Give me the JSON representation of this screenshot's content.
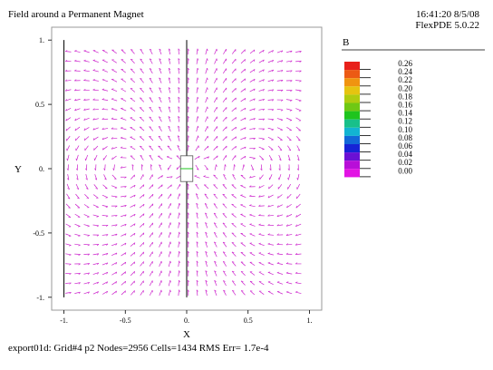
{
  "header": {
    "title": "Field around a Permanent Magnet",
    "timestamp": "16:41:20 8/5/08",
    "version": "FlexPDE 5.0.22"
  },
  "footer": {
    "status": "export01d:  Grid#4  p2  Nodes=2956 Cells=1434 RMS Err= 1.7e-4"
  },
  "chart_data": {
    "type": "vector-field",
    "title": "Field around a Permanent Magnet",
    "xlabel": "X",
    "ylabel": "Y",
    "xlim": [
      -1.1,
      1.1
    ],
    "ylim": [
      -1.1,
      1.1
    ],
    "x_ticks": [
      {
        "value": -1,
        "label": "-1."
      },
      {
        "value": -0.5,
        "label": "-0.5"
      },
      {
        "value": 0,
        "label": "0."
      },
      {
        "value": 0.5,
        "label": "0.5"
      },
      {
        "value": 1,
        "label": "1."
      }
    ],
    "y_ticks": [
      {
        "value": 1,
        "label": "1."
      },
      {
        "value": 0.5,
        "label": "0.5"
      },
      {
        "value": 0,
        "label": "0."
      },
      {
        "value": -0.5,
        "label": "-0.5"
      },
      {
        "value": -1,
        "label": "-1."
      }
    ],
    "field_region": {
      "x": [
        -1,
        1
      ],
      "y": [
        -1,
        1
      ]
    },
    "magnet": {
      "x": [
        -0.05,
        0.05
      ],
      "y": [
        -0.1,
        0.1
      ]
    },
    "boundary_lines": [
      {
        "x": -1,
        "y": [
          -1,
          1
        ]
      },
      {
        "x": 0,
        "y": [
          0.1,
          1
        ]
      },
      {
        "x": 0,
        "y": [
          -1,
          -0.1
        ]
      }
    ],
    "legend": {
      "title": "B",
      "levels": [
        {
          "label": "0.26",
          "color": "#e8201a"
        },
        {
          "label": "0.24",
          "color": "#ec5a14"
        },
        {
          "label": "0.22",
          "color": "#f09410"
        },
        {
          "label": "0.20",
          "color": "#e6c410"
        },
        {
          "label": "0.18",
          "color": "#b0cc10"
        },
        {
          "label": "0.16",
          "color": "#6fc814"
        },
        {
          "label": "0.14",
          "color": "#1ec41e"
        },
        {
          "label": "0.12",
          "color": "#18c08a"
        },
        {
          "label": "0.10",
          "color": "#12b4d2"
        },
        {
          "label": "0.08",
          "color": "#1268d8"
        },
        {
          "label": "0.06",
          "color": "#1622d6"
        },
        {
          "label": "0.04",
          "color": "#6a10d4"
        },
        {
          "label": "0.02",
          "color": "#b80ed8"
        },
        {
          "label": "0.00",
          "color": "#e214e4"
        }
      ]
    },
    "colors": {
      "arrow": "#cc22cc",
      "frame": "#999999"
    }
  }
}
